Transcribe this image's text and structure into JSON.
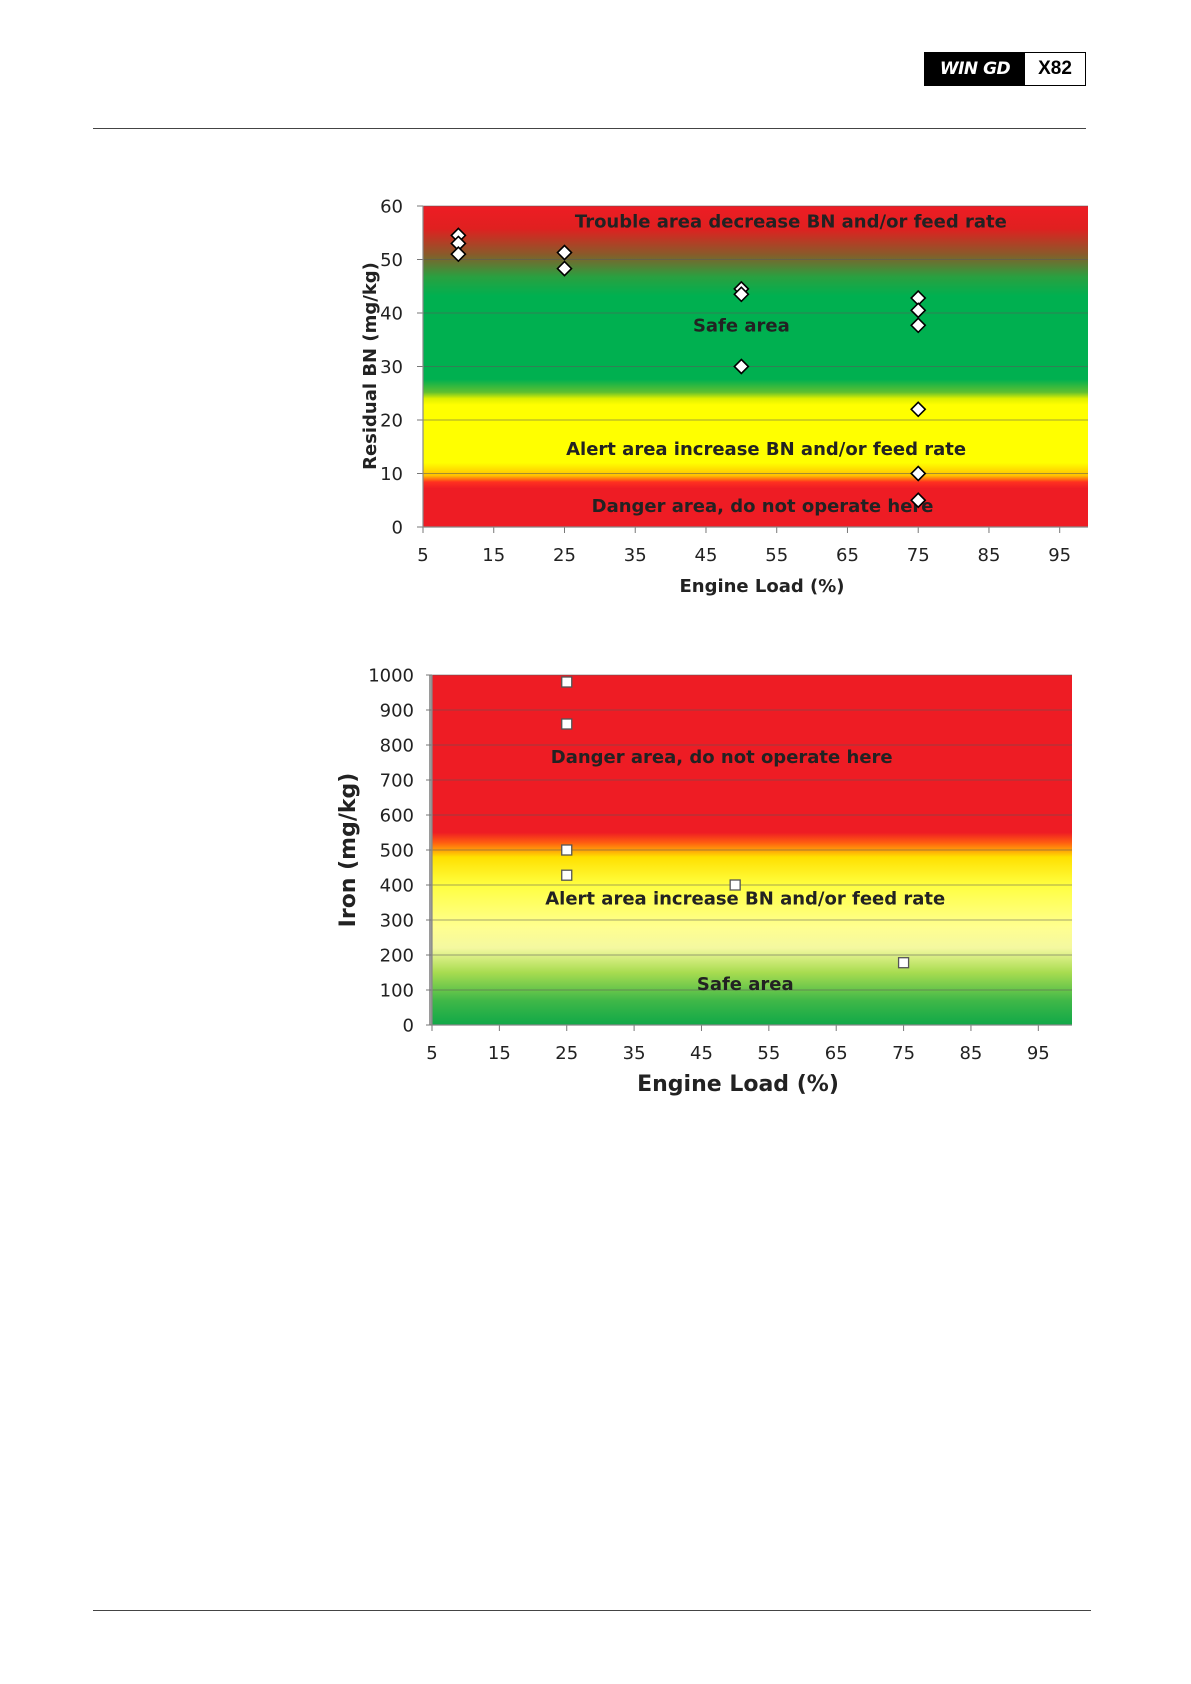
{
  "header": {
    "brand_logo": "WIN GD",
    "model": "X82"
  },
  "chart_data": [
    {
      "type": "scatter",
      "title": "",
      "xlabel": "Engine Load (%)",
      "ylabel": "Residual BN (mg/kg)",
      "xlim": [
        5,
        99
      ],
      "ylim": [
        0,
        60
      ],
      "x_ticks": [
        5,
        15,
        25,
        35,
        45,
        55,
        65,
        75,
        85,
        95
      ],
      "y_ticks": [
        0,
        10,
        20,
        30,
        40,
        50,
        60
      ],
      "marker": "diamond",
      "points": [
        {
          "x": 10,
          "y": 54.5
        },
        {
          "x": 10,
          "y": 53
        },
        {
          "x": 10,
          "y": 51
        },
        {
          "x": 25,
          "y": 51.3
        },
        {
          "x": 25,
          "y": 48.3
        },
        {
          "x": 50,
          "y": 44.5
        },
        {
          "x": 50,
          "y": 43.5
        },
        {
          "x": 50,
          "y": 30
        },
        {
          "x": 75,
          "y": 42.8
        },
        {
          "x": 75,
          "y": 40.5
        },
        {
          "x": 75,
          "y": 37.7
        },
        {
          "x": 75,
          "y": 22
        },
        {
          "x": 75,
          "y": 10
        },
        {
          "x": 75,
          "y": 5
        }
      ],
      "zones": [
        {
          "name": "trouble",
          "label": "Trouble area decrease BN and/or feed rate",
          "label_x": 57,
          "label_y": 56
        },
        {
          "name": "safe",
          "label": "Safe area",
          "label_x": 50,
          "label_y": 36.5
        },
        {
          "name": "alert",
          "label": "Alert area increase BN and/or feed rate",
          "label_x": 53.5,
          "label_y": 13.5
        },
        {
          "name": "danger",
          "label": "Danger area, do not operate here",
          "label_x": 53,
          "label_y": 2.8
        }
      ]
    },
    {
      "type": "scatter",
      "title": "",
      "xlabel": "Engine Load (%)",
      "ylabel": "Iron (mg/kg)",
      "xlim": [
        5,
        100
      ],
      "ylim": [
        0,
        1000
      ],
      "x_ticks": [
        5,
        15,
        25,
        35,
        45,
        55,
        65,
        75,
        85,
        95
      ],
      "y_ticks": [
        0,
        100,
        200,
        300,
        400,
        500,
        600,
        700,
        800,
        900,
        1000
      ],
      "marker": "square",
      "points": [
        {
          "x": 25,
          "y": 980
        },
        {
          "x": 25,
          "y": 860
        },
        {
          "x": 25,
          "y": 500
        },
        {
          "x": 25,
          "y": 428
        },
        {
          "x": 50,
          "y": 400
        },
        {
          "x": 75,
          "y": 178
        }
      ],
      "zones": [
        {
          "name": "danger",
          "label": "Danger area, do not operate here",
          "label_x": 48,
          "label_y": 748
        },
        {
          "name": "alert",
          "label": "Alert area increase BN and/or feed rate",
          "label_x": 51.5,
          "label_y": 345
        },
        {
          "name": "safe",
          "label": "Safe area",
          "label_x": 51.5,
          "label_y": 100
        }
      ]
    }
  ]
}
